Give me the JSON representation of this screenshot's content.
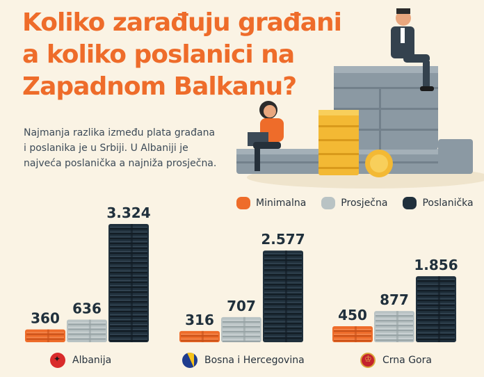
{
  "title": {
    "line1": "Koliko zarađuju građani",
    "line2": "a koliko poslanici na",
    "line3": "Zapadnom Balkanu?"
  },
  "subtitle": {
    "line1": "Najmanja razlika između plata građana",
    "line2": "i poslanika je u Srbiji. U Albaniji je",
    "line3": "najveća poslanička a najniža prosječna."
  },
  "colors": {
    "accent": "#ee6c2a",
    "minimalna": "#ee6c2a",
    "prosjecna": "#b9c3c4",
    "poslanicka": "#20303c",
    "background": "#faf3e4"
  },
  "chart_data": {
    "type": "bar",
    "categories": [
      "Albanija",
      "Bosna i Hercegovina",
      "Crna Gora"
    ],
    "series": [
      {
        "name": "Minimalna",
        "values": [
          360,
          316,
          450
        ],
        "labels": [
          "360",
          "316",
          "450"
        ]
      },
      {
        "name": "Prosječna",
        "values": [
          636,
          707,
          877
        ],
        "labels": [
          "636",
          "707",
          "877"
        ]
      },
      {
        "name": "Poslanička",
        "values": [
          3324,
          2577,
          1856
        ],
        "labels": [
          "3.324",
          "2.577",
          "1.856"
        ]
      }
    ],
    "legend_position": "top-right",
    "grid": false
  },
  "countries": [
    {
      "name": "Albanija",
      "flag": "albania-flag-icon"
    },
    {
      "name": "Bosna i Hercegovina",
      "flag": "bosnia-flag-icon"
    },
    {
      "name": "Crna Gora",
      "flag": "montenegro-flag-icon"
    }
  ]
}
